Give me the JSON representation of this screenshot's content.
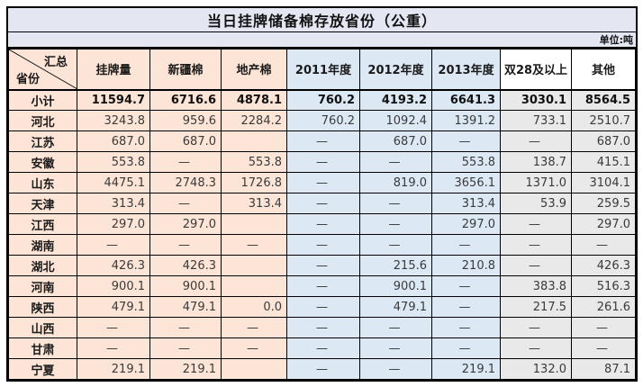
{
  "title": "当日挂牌储备棉存放省份（公重）",
  "unit_label": "单位:吨",
  "corner": {
    "top": "汇总",
    "bottom": "省份"
  },
  "colors": {
    "lavender": "#E4E6F1",
    "peach": "#FCE4D6",
    "blue": "#DCE9F5",
    "gray": "#E9E9E9",
    "border": "#000000"
  },
  "chart_data": {
    "type": "table",
    "title": "当日挂牌储备棉存放省份（公重）",
    "unit": "吨",
    "columns": [
      "省份",
      "挂牌量",
      "新疆棉",
      "地产棉",
      "2011年度",
      "2012年度",
      "2013年度",
      "双28及以上",
      "其他"
    ],
    "summary_row": "小计",
    "rows": [
      {
        "province": "小计",
        "bold": true,
        "values": [
          "11594.7",
          "6716.6",
          "4878.1",
          "760.2",
          "4193.2",
          "6641.3",
          "3030.1",
          "8564.5"
        ]
      },
      {
        "province": "河北",
        "bold": false,
        "values": [
          "3243.8",
          "959.6",
          "2284.2",
          "760.2",
          "1092.4",
          "1391.2",
          "733.1",
          "2510.7"
        ]
      },
      {
        "province": "江苏",
        "bold": false,
        "values": [
          "687.0",
          "687.0",
          "",
          "—",
          "687.0",
          "—",
          "—",
          "687.0"
        ]
      },
      {
        "province": "安徽",
        "bold": false,
        "values": [
          "553.8",
          "—",
          "553.8",
          "—",
          "—",
          "553.8",
          "138.7",
          "415.1"
        ]
      },
      {
        "province": "山东",
        "bold": false,
        "values": [
          "4475.1",
          "2748.3",
          "1726.8",
          "—",
          "819.0",
          "3656.1",
          "1371.0",
          "3104.1"
        ]
      },
      {
        "province": "天津",
        "bold": false,
        "values": [
          "313.4",
          "—",
          "313.4",
          "—",
          "—",
          "313.4",
          "53.9",
          "259.5"
        ]
      },
      {
        "province": "江西",
        "bold": false,
        "values": [
          "297.0",
          "297.0",
          "",
          "—",
          "—",
          "297.0",
          "—",
          "297.0"
        ]
      },
      {
        "province": "湖南",
        "bold": false,
        "values": [
          "—",
          "—",
          "—",
          "—",
          "—",
          "—",
          "—",
          "—"
        ]
      },
      {
        "province": "湖北",
        "bold": false,
        "values": [
          "426.3",
          "426.3",
          "",
          "—",
          "215.6",
          "210.8",
          "—",
          "426.3"
        ]
      },
      {
        "province": "河南",
        "bold": false,
        "values": [
          "900.1",
          "900.1",
          "",
          "—",
          "900.1",
          "—",
          "383.8",
          "516.3"
        ]
      },
      {
        "province": "陕西",
        "bold": false,
        "values": [
          "479.1",
          "479.1",
          "0.0",
          "—",
          "479.1",
          "—",
          "217.5",
          "261.6"
        ]
      },
      {
        "province": "山西",
        "bold": false,
        "values": [
          "—",
          "—",
          "—",
          "—",
          "—",
          "—",
          "—",
          "—"
        ]
      },
      {
        "province": "甘肃",
        "bold": false,
        "values": [
          "—",
          "—",
          "—",
          "—",
          "—",
          "—",
          "—",
          "—"
        ]
      },
      {
        "province": "宁夏",
        "bold": false,
        "values": [
          "219.1",
          "219.1",
          "",
          "—",
          "—",
          "219.1",
          "132.0",
          "87.1"
        ]
      }
    ]
  }
}
